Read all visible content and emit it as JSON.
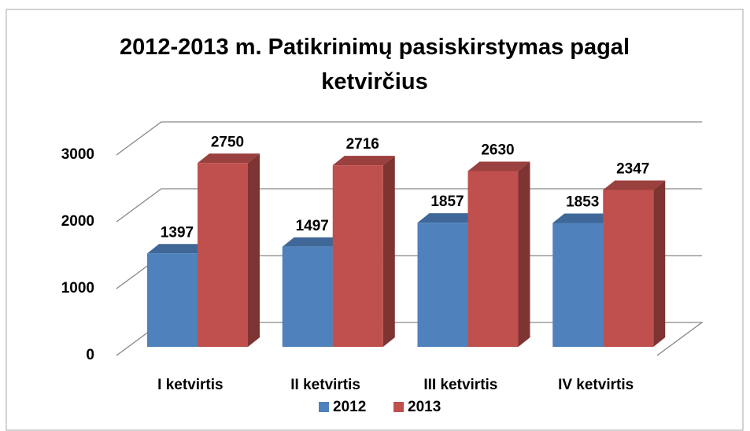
{
  "chart_data": {
    "type": "bar3d",
    "title": "2012-2013 m. Patikrinimų pasiskirstymas pagal ketvirčius",
    "categories": [
      "I ketvirtis",
      "II ketvirtis",
      "III ketvirtis",
      "IV ketvirtis"
    ],
    "series": [
      {
        "name": "2012",
        "color": "#4f81bd",
        "values": [
          1397,
          1497,
          1857,
          1853
        ]
      },
      {
        "name": "2013",
        "color": "#c0504d",
        "values": [
          2750,
          2716,
          2630,
          2347
        ]
      }
    ],
    "ylim": [
      0,
      3000
    ],
    "yticks": [
      0,
      1000,
      2000,
      3000
    ],
    "grid": true,
    "legend": "bottom"
  }
}
